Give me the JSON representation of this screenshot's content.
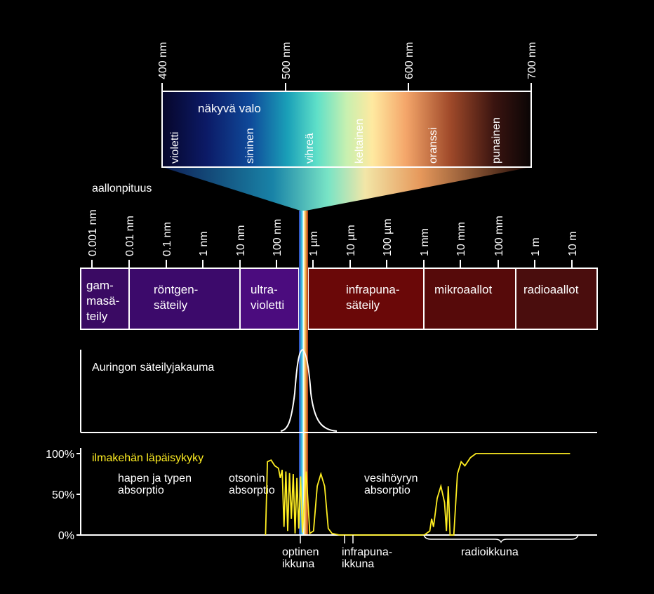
{
  "visible": {
    "ticks": [
      "400 nm",
      "500 nm",
      "600 nm",
      "700 nm"
    ],
    "title": "näkyvä valo",
    "colors": [
      "violetti",
      "sininen",
      "vihreä",
      "keltainen",
      "oranssi",
      "punainen"
    ]
  },
  "wavelength": {
    "title": "aallonpituus",
    "ticks": [
      "0.001 nm",
      "0.01 nm",
      "0.1 nm",
      "1 nm",
      "10 nm",
      "100 nm",
      "1 µm",
      "10 µm",
      "100 µm",
      "1 mm",
      "10 mm",
      "100 mm",
      "1 m",
      "10 m"
    ]
  },
  "regions": [
    {
      "lines": [
        "gam-",
        "masä-",
        "teily"
      ],
      "color": "#3a0a63"
    },
    {
      "lines": [
        "röntgen-",
        "säteily"
      ],
      "color": "#3c0a6b"
    },
    {
      "lines": [
        "ultra-",
        "violetti"
      ],
      "color": "#4b0c7e"
    },
    {
      "lines": [
        "infrapuna-",
        "säteily"
      ],
      "color": "#6a0808"
    },
    {
      "lines": [
        "mikroaallot"
      ],
      "color": "#560a0a"
    },
    {
      "lines": [
        "radioaallot"
      ],
      "color": "#4a0d0d"
    }
  ],
  "sun": {
    "title": "Auringon säteilyjakauma"
  },
  "chart_data": {
    "type": "line",
    "title": "ilmakehän läpäisykyky",
    "y_ticks": [
      "100%",
      "50%",
      "0%"
    ],
    "ylim": [
      0,
      100
    ],
    "x": [
      "1 nm",
      "10 nm",
      "100 nm",
      "1 µm",
      "10 µm",
      "100 µm",
      "1 mm",
      "10 mm",
      "100 mm",
      "1 m",
      "10 m"
    ],
    "x_log10_m": [
      -9,
      -8,
      -7,
      -6,
      -5,
      -4,
      -3,
      -2,
      -1,
      0,
      1
    ],
    "series": [
      {
        "color": "#ffee22",
        "points": [
          [
            -7.3,
            0
          ],
          [
            -7.25,
            90
          ],
          [
            -7.15,
            92
          ],
          [
            -7.05,
            85
          ],
          [
            -6.95,
            82
          ],
          [
            -6.9,
            70
          ],
          [
            -6.85,
            80
          ],
          [
            -6.8,
            10
          ],
          [
            -6.75,
            78
          ],
          [
            -6.7,
            5
          ],
          [
            -6.65,
            76
          ],
          [
            -6.6,
            20
          ],
          [
            -6.55,
            75
          ],
          [
            -6.5,
            2
          ],
          [
            -6.45,
            70
          ],
          [
            -6.4,
            8
          ],
          [
            -6.35,
            72
          ],
          [
            -6.3,
            3
          ],
          [
            -6.2,
            78
          ],
          [
            -6.1,
            2
          ],
          [
            -6.0,
            5
          ],
          [
            -5.9,
            60
          ],
          [
            -5.8,
            75
          ],
          [
            -5.7,
            60
          ],
          [
            -5.6,
            8
          ],
          [
            -5.5,
            2
          ],
          [
            -5.3,
            0
          ],
          [
            -3.0,
            0
          ],
          [
            -2.85,
            5
          ],
          [
            -2.8,
            20
          ],
          [
            -2.75,
            10
          ],
          [
            -2.65,
            45
          ],
          [
            -2.55,
            60
          ],
          [
            -2.45,
            40
          ],
          [
            -2.4,
            5
          ],
          [
            -2.35,
            60
          ],
          [
            -2.3,
            0
          ],
          [
            -2.2,
            0
          ],
          [
            -2.1,
            75
          ],
          [
            -2.0,
            90
          ],
          [
            -1.9,
            85
          ],
          [
            -1.75,
            95
          ],
          [
            -1.6,
            100
          ],
          [
            0.95,
            100
          ]
        ]
      }
    ],
    "annotations": [
      {
        "lines": [
          "hapen ja typen",
          "absorptio"
        ]
      },
      {
        "lines": [
          "otsonin",
          "absorptio"
        ]
      },
      {
        "lines": [
          "vesihöyryn",
          "absorptio"
        ]
      }
    ],
    "windows": [
      {
        "lines": [
          "optinen",
          "ikkuna"
        ]
      },
      {
        "lines": [
          "infrapuna-",
          "ikkuna"
        ]
      },
      {
        "lines": [
          "radioikkuna"
        ]
      }
    ]
  }
}
